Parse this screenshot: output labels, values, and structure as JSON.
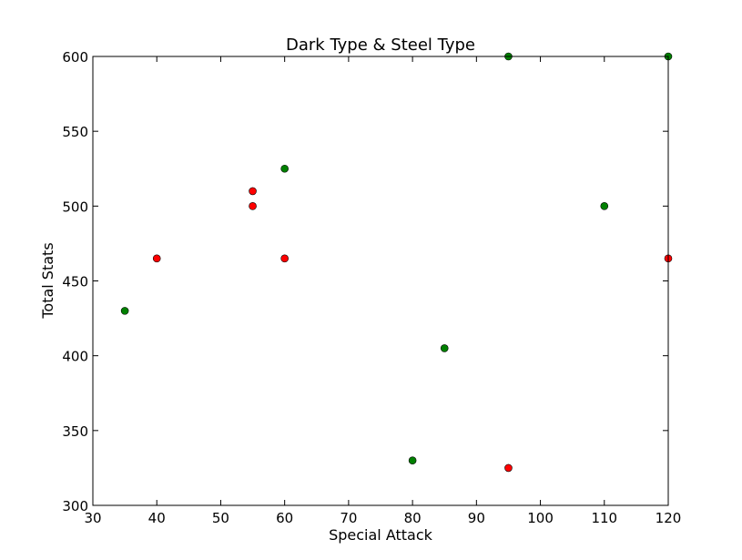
{
  "chart_data": {
    "type": "scatter",
    "title": "Dark Type & Steel Type",
    "xlabel": "Special Attack",
    "ylabel": "Total Stats",
    "xlim": [
      30,
      120
    ],
    "ylim": [
      300,
      600
    ],
    "xticks": [
      30,
      40,
      50,
      60,
      70,
      80,
      90,
      100,
      110,
      120
    ],
    "yticks": [
      300,
      350,
      400,
      450,
      500,
      550,
      600
    ],
    "grid": false,
    "series": [
      {
        "color": "#008000",
        "points": [
          {
            "x": 35,
            "y": 430
          },
          {
            "x": 60,
            "y": 525
          },
          {
            "x": 80,
            "y": 330
          },
          {
            "x": 85,
            "y": 405
          },
          {
            "x": 95,
            "y": 600
          },
          {
            "x": 110,
            "y": 500
          },
          {
            "x": 120,
            "y": 600
          }
        ]
      },
      {
        "color": "#ff0000",
        "points": [
          {
            "x": 40,
            "y": 465
          },
          {
            "x": 55,
            "y": 510
          },
          {
            "x": 55,
            "y": 500
          },
          {
            "x": 60,
            "y": 465
          },
          {
            "x": 95,
            "y": 325
          },
          {
            "x": 120,
            "y": 465
          }
        ]
      }
    ]
  }
}
